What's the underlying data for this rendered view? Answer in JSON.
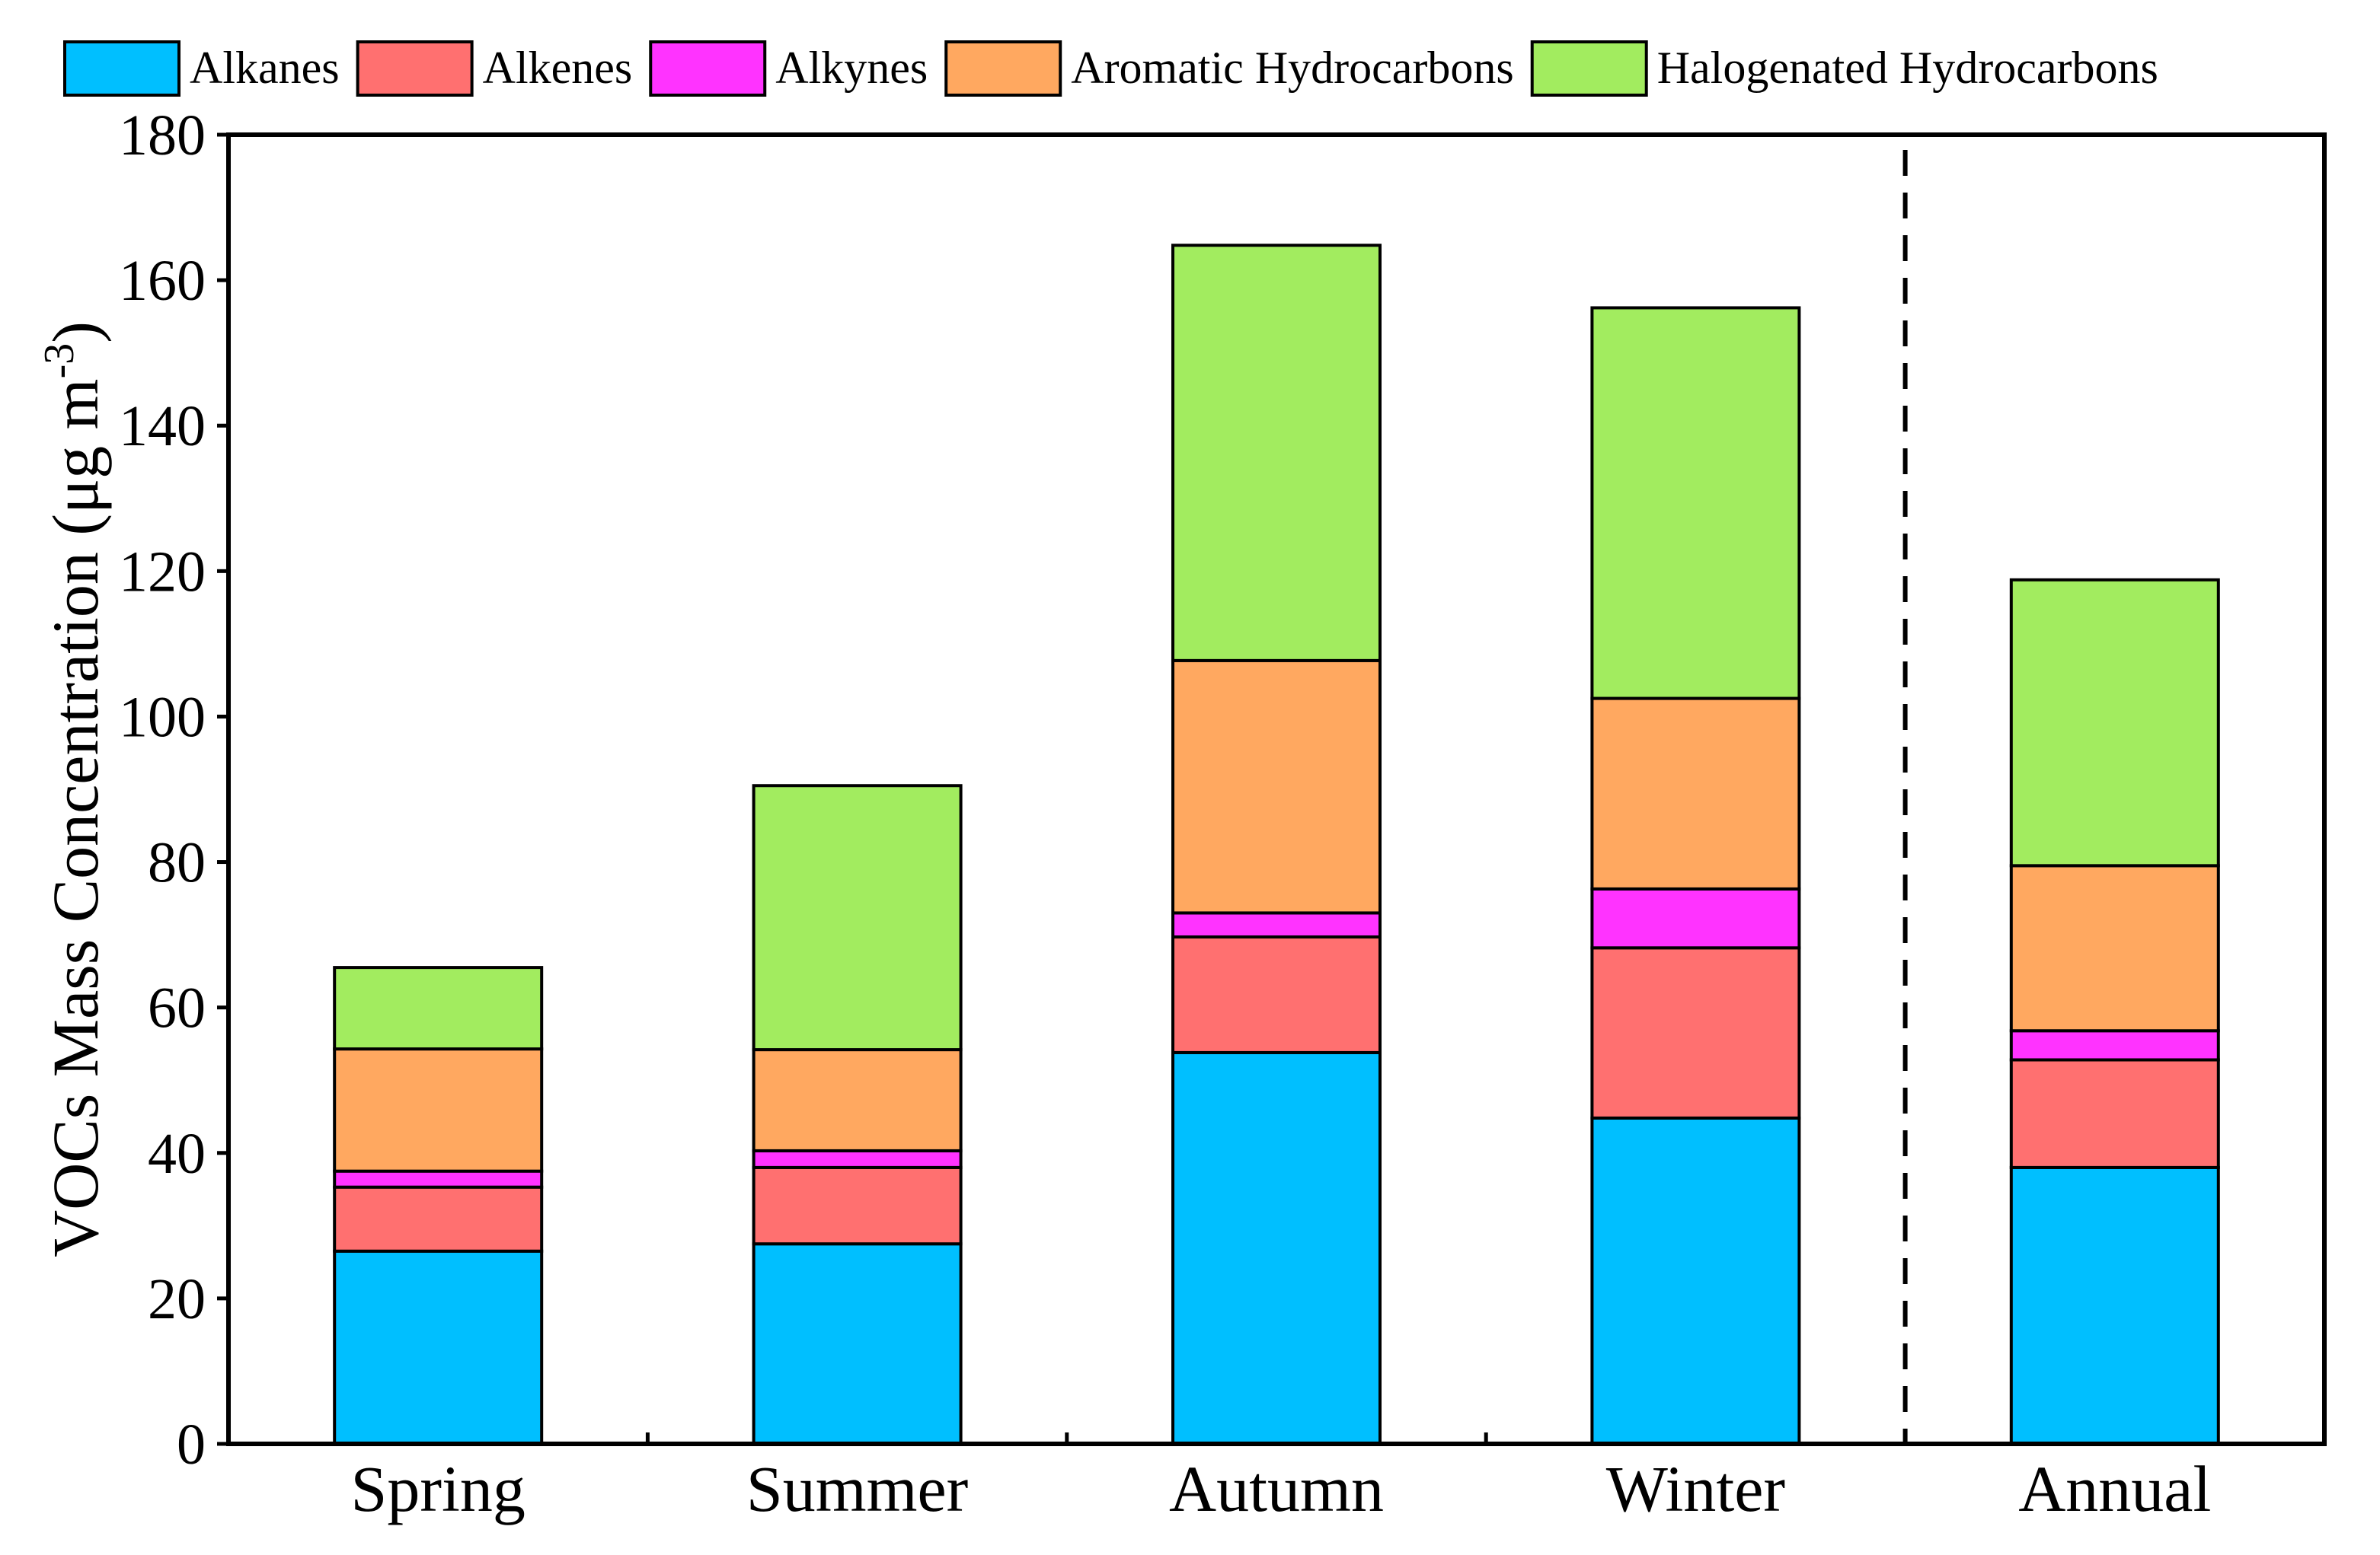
{
  "chart_data": {
    "type": "bar",
    "stacked": true,
    "title": "",
    "xlabel": "",
    "ylabel": {
      "main": "VOCs Mass Concentration (μg m",
      "superscript": "-3",
      "close": ")"
    },
    "ylim": [
      0,
      180
    ],
    "yticks": [
      0,
      20,
      40,
      60,
      80,
      100,
      120,
      140,
      160,
      180
    ],
    "categories": [
      "Spring",
      "Summer",
      "Autumn",
      "Winter",
      "Annual"
    ],
    "separator_after_category": "Winter",
    "legend_position": "top",
    "series": [
      {
        "name": "Alkanes",
        "color": "#00bfff",
        "values": [
          26.5,
          27.5,
          53.8,
          44.8,
          38.0
        ]
      },
      {
        "name": "Alkenes",
        "color": "#ff7070",
        "values": [
          8.8,
          10.5,
          15.9,
          23.4,
          14.8
        ]
      },
      {
        "name": "Alkynes",
        "color": "#ff33ff",
        "values": [
          2.2,
          2.3,
          3.3,
          8.1,
          4.0
        ]
      },
      {
        "name": "Aromatic Hydrocarbons",
        "color": "#ffa860",
        "values": [
          16.8,
          13.9,
          34.7,
          26.2,
          22.7
        ]
      },
      {
        "name": "Halogenated Hydrocarbons",
        "color": "#a2ec5f",
        "values": [
          11.2,
          36.3,
          57.1,
          53.7,
          39.3
        ]
      }
    ]
  }
}
